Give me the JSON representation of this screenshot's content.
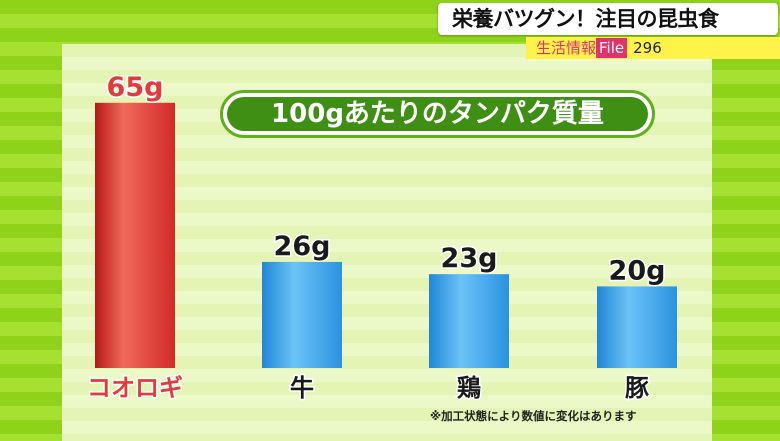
{
  "header": {
    "headline": "栄養バツグン！注目の昆虫食",
    "section": "生活情報",
    "file_label": "File",
    "file_number": "296"
  },
  "footnote": "※加工状態により数値に変化はあります",
  "colors": {
    "highlight": "#e63a3a",
    "default": "#3ea6ee"
  },
  "chart_data": {
    "type": "bar",
    "title": "100gあたりのタンパク質量",
    "categories": [
      "コオロギ",
      "牛",
      "鶏",
      "豚"
    ],
    "values": [
      65,
      26,
      23,
      20
    ],
    "value_labels": [
      "65g",
      "26g",
      "23g",
      "20g"
    ],
    "unit": "g",
    "highlight_index": 0,
    "ylim": [
      0,
      70
    ],
    "grid": false,
    "xlabel": "",
    "ylabel": ""
  }
}
